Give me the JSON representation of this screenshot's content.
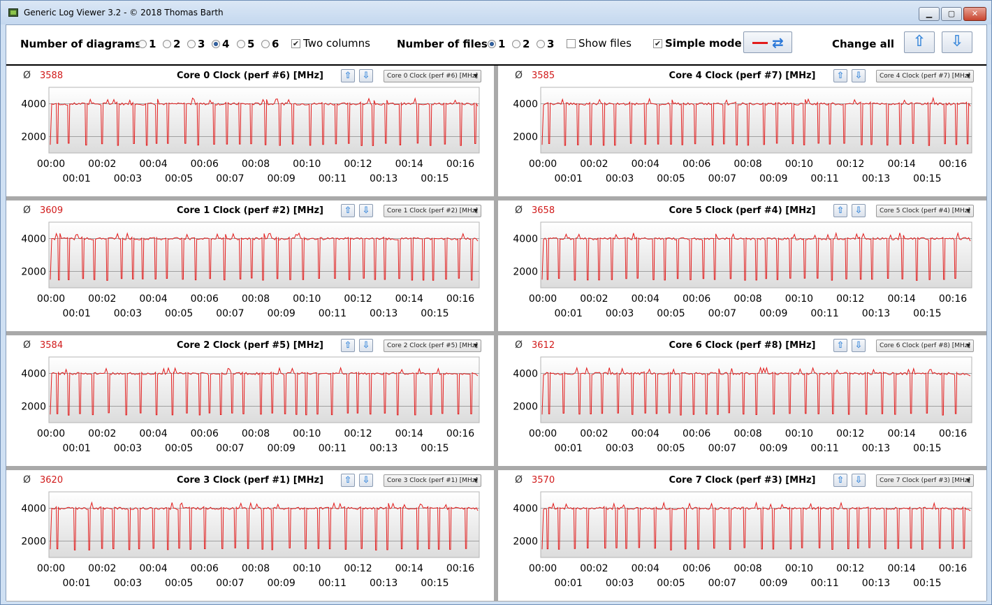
{
  "window": {
    "title": "Generic Log Viewer 3.2 - © 2018 Thomas Barth",
    "min_label": "▁",
    "max_label": "▢",
    "close_label": "✕"
  },
  "toolbar": {
    "num_diagrams_label": "Number of diagrams",
    "diagram_options": [
      "1",
      "2",
      "3",
      "4",
      "5",
      "6"
    ],
    "diagram_selected": "4",
    "two_columns_label": "Two columns",
    "two_columns_checked": true,
    "num_files_label": "Number of files",
    "file_options": [
      "1",
      "2",
      "3"
    ],
    "file_selected": "1",
    "show_files_label": "Show files",
    "show_files_checked": false,
    "simple_mode_label": "Simple mode",
    "simple_mode_checked": true,
    "change_all_label": "Change all",
    "line_color": "#e21c1c",
    "refresh_icon": "refresh-icon",
    "up_icon": "arrow-up-icon",
    "down_icon": "arrow-down-icon"
  },
  "panels": [
    {
      "avg_symbol": "Ø",
      "avg": "3588",
      "title": "Core 0 Clock (perf #6) [MHz]",
      "select": "Core 0 Clock (perf #6) [MHz]"
    },
    {
      "avg_symbol": "Ø",
      "avg": "3585",
      "title": "Core 4 Clock (perf #7) [MHz]",
      "select": "Core 4 Clock (perf #7) [MHz]"
    },
    {
      "avg_symbol": "Ø",
      "avg": "3609",
      "title": "Core 1 Clock (perf #2) [MHz]",
      "select": "Core 1 Clock (perf #2) [MHz]"
    },
    {
      "avg_symbol": "Ø",
      "avg": "3658",
      "title": "Core 5 Clock (perf #4) [MHz]",
      "select": "Core 5 Clock (perf #4) [MHz]"
    },
    {
      "avg_symbol": "Ø",
      "avg": "3584",
      "title": "Core 2 Clock (perf #5) [MHz]",
      "select": "Core 2 Clock (perf #5) [MHz]"
    },
    {
      "avg_symbol": "Ø",
      "avg": "3612",
      "title": "Core 6 Clock (perf #8) [MHz]",
      "select": "Core 6 Clock (perf #8) [MHz]"
    },
    {
      "avg_symbol": "Ø",
      "avg": "3620",
      "title": "Core 3 Clock (perf #1) [MHz]",
      "select": "Core 3 Clock (perf #1) [MHz]"
    },
    {
      "avg_symbol": "Ø",
      "avg": "3570",
      "title": "Core 7 Clock (perf #3) [MHz]",
      "select": "Core 7 Clock (perf #3) [MHz]"
    }
  ],
  "axis": {
    "y_ticks": [
      "4000",
      "2000"
    ],
    "x_ticks_top": [
      "00:00",
      "00:02",
      "00:04",
      "00:06",
      "00:08",
      "00:10",
      "00:12",
      "00:14",
      "00:16"
    ],
    "x_ticks_bottom": [
      "00:01",
      "00:03",
      "00:05",
      "00:07",
      "00:09",
      "00:11",
      "00:13",
      "00:15"
    ]
  },
  "series_style": {
    "color": "#e21c1c",
    "background_top": "#ffffff",
    "background_bottom": "#dcdcdc",
    "gridline": "#8a8a8a"
  }
}
